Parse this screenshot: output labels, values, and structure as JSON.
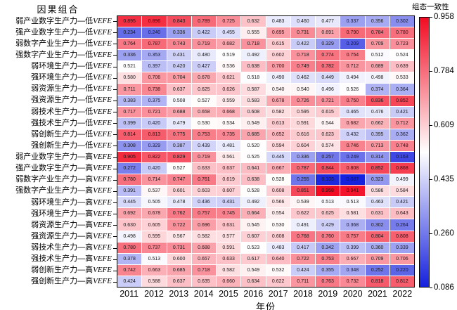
{
  "left_axis_title": "因果组合",
  "xlabel": "年份",
  "colorbar": {
    "title": "组态一致性",
    "vmin": 0.086,
    "vmax": 0.958,
    "ticks": [
      0.958,
      0.784,
      0.609,
      0.435,
      0.26,
      0.086
    ],
    "color_max": "#f20c23",
    "color_mid": "#ffffff",
    "color_min": "#1520dd"
  },
  "chart_data": {
    "type": "heatmap",
    "x": [
      "2011",
      "2012",
      "2013",
      "2014",
      "2015",
      "2016",
      "2017",
      "2018",
      "2019",
      "2020",
      "2021",
      "2022"
    ],
    "xlabel": "年份",
    "value_range": [
      0.086,
      0.958
    ],
    "colormap": "blue-white-red",
    "rows": [
      {
        "label_cn": "弱产业数字生产力—低",
        "label_vefe": "VEFE",
        "values": [
          0.895,
          0.896,
          0.843,
          0.789,
          0.725,
          0.632,
          0.483,
          0.46,
          0.477,
          0.337,
          0.356,
          0.302
        ]
      },
      {
        "label_cn": "强产业数字生产力—低",
        "label_vefe": "VEFE",
        "values": [
          0.234,
          0.24,
          0.336,
          0.422,
          0.455,
          0.555,
          0.695,
          0.731,
          0.691,
          0.79,
          0.784,
          0.78
        ]
      },
      {
        "label_cn": "弱数字产业生产力—低",
        "label_vefe": "VEFE",
        "values": [
          0.764,
          0.787,
          0.743,
          0.719,
          0.682,
          0.718,
          0.615,
          0.422,
          0.329,
          0.209,
          0.709,
          0.723
        ]
      },
      {
        "label_cn": "强数字产业生产力—低",
        "label_vefe": "VEFE",
        "values": [
          0.336,
          0.353,
          0.431,
          0.48,
          0.519,
          0.492,
          0.602,
          0.718,
          0.774,
          0.754,
          0.512,
          0.524
        ]
      },
      {
        "label_cn": "弱环境生产力—低",
        "label_vefe": "VEFE",
        "values": [
          0.521,
          0.397,
          0.42,
          0.427,
          0.536,
          0.638,
          0.7,
          0.749,
          0.782,
          0.712,
          0.689,
          0.639
        ]
      },
      {
        "label_cn": "强环境生产力—低",
        "label_vefe": "VEFE",
        "values": [
          0.58,
          0.706,
          0.704,
          0.678,
          0.621,
          0.518,
          0.49,
          0.462,
          0.449,
          0.494,
          0.498,
          0.533
        ]
      },
      {
        "label_cn": "弱资源生产力—低",
        "label_vefe": "VEFE",
        "values": [
          0.711,
          0.738,
          0.637,
          0.625,
          0.626,
          0.587,
          0.54,
          0.54,
          0.496,
          0.526,
          0.374,
          0.364
        ]
      },
      {
        "label_cn": "强资源生产力—低",
        "label_vefe": "VEFE",
        "values": [
          0.383,
          0.375,
          0.508,
          0.527,
          0.559,
          0.583,
          0.678,
          0.726,
          0.721,
          0.75,
          0.836,
          0.852
        ]
      },
      {
        "label_cn": "弱技术生产力—低",
        "label_vefe": "VEFE",
        "values": [
          0.717,
          0.721,
          0.688,
          0.658,
          0.668,
          0.608,
          0.582,
          0.595,
          0.615,
          0.465,
          0.476,
          0.421
        ]
      },
      {
        "label_cn": "强技术生产力—低",
        "label_vefe": "VEFE",
        "values": [
          0.399,
          0.42,
          0.479,
          0.53,
          0.534,
          0.549,
          0.613,
          0.591,
          0.544,
          0.682,
          0.662,
          0.712
        ]
      },
      {
        "label_cn": "弱创新生产力—低",
        "label_vefe": "VEFE",
        "values": [
          0.814,
          0.813,
          0.775,
          0.753,
          0.735,
          0.685,
          0.652,
          0.616,
          0.623,
          0.432,
          0.395,
          0.362
        ]
      },
      {
        "label_cn": "强创新生产力—低",
        "label_vefe": "VEFE",
        "values": [
          0.308,
          0.329,
          0.387,
          0.439,
          0.481,
          0.52,
          0.594,
          0.604,
          0.574,
          0.746,
          0.713,
          0.748
        ]
      },
      {
        "label_cn": "弱产业数字生产力—高",
        "label_vefe": "VEFE",
        "values": [
          0.905,
          0.822,
          0.829,
          0.719,
          0.561,
          0.525,
          0.445,
          0.336,
          0.257,
          0.249,
          0.314,
          0.163
        ]
      },
      {
        "label_cn": "强产业数字生产力—高",
        "label_vefe": "VEFE",
        "values": [
          0.272,
          0.42,
          0.527,
          0.633,
          0.637,
          0.641,
          0.667,
          0.787,
          0.844,
          0.808,
          0.852,
          0.868
        ]
      },
      {
        "label_cn": "弱数字产业生产力—高",
        "label_vefe": "VEFE",
        "values": [
          0.78,
          0.714,
          0.747,
          0.761,
          0.619,
          0.638,
          0.528,
          0.255,
          0.103,
          0.087,
          0.323,
          0.499
        ]
      },
      {
        "label_cn": "强数字产业生产力—高",
        "label_vefe": "VEFE",
        "values": [
          0.391,
          0.537,
          0.601,
          0.603,
          0.607,
          0.528,
          0.608,
          0.851,
          0.958,
          0.941,
          0.586,
          0.584
        ]
      },
      {
        "label_cn": "弱环境生产力—高",
        "label_vefe": "VEFE",
        "values": [
          0.445,
          0.505,
          0.478,
          0.436,
          0.431,
          0.492,
          0.566,
          0.539,
          0.513,
          0.513,
          0.463,
          0.421
        ]
      },
      {
        "label_cn": "强环境生产力—高",
        "label_vefe": "VEFE",
        "values": [
          0.692,
          0.678,
          0.762,
          0.757,
          0.745,
          0.664,
          0.554,
          0.622,
          0.625,
          0.581,
          0.631,
          0.643
        ]
      },
      {
        "label_cn": "弱资源生产力—高",
        "label_vefe": "VEFE",
        "values": [
          0.63,
          0.605,
          0.722,
          0.696,
          0.631,
          0.545,
          0.53,
          0.491,
          0.429,
          0.368,
          0.302,
          0.264
        ]
      },
      {
        "label_cn": "强资源生产力—高",
        "label_vefe": "VEFE",
        "values": [
          0.498,
          0.595,
          0.567,
          0.582,
          0.577,
          0.607,
          0.608,
          0.768,
          0.76,
          0.757,
          0.804,
          0.808
        ]
      },
      {
        "label_cn": "弱技术生产力—高",
        "label_vefe": "VEFE",
        "values": [
          0.78,
          0.737,
          0.731,
          0.688,
          0.591,
          0.523,
          0.483,
          0.417,
          0.342,
          0.399,
          0.36,
          0.339
        ]
      },
      {
        "label_cn": "强技术生产力—高",
        "label_vefe": "VEFE",
        "values": [
          0.378,
          0.513,
          0.6,
          0.657,
          0.633,
          0.617,
          0.64,
          0.722,
          0.753,
          0.667,
          0.709,
          0.706
        ]
      },
      {
        "label_cn": "弱创新生产力—高",
        "label_vefe": "VEFE",
        "values": [
          0.742,
          0.663,
          0.685,
          0.718,
          0.582,
          0.549,
          0.532,
          0.424,
          0.355,
          0.348,
          0.252,
          0.22
        ]
      },
      {
        "label_cn": "强创新生产力—高",
        "label_vefe": "VEFE",
        "values": [
          0.424,
          0.588,
          0.637,
          0.635,
          0.66,
          0.634,
          0.622,
          0.711,
          0.763,
          0.732,
          0.818,
          0.812
        ]
      }
    ]
  }
}
